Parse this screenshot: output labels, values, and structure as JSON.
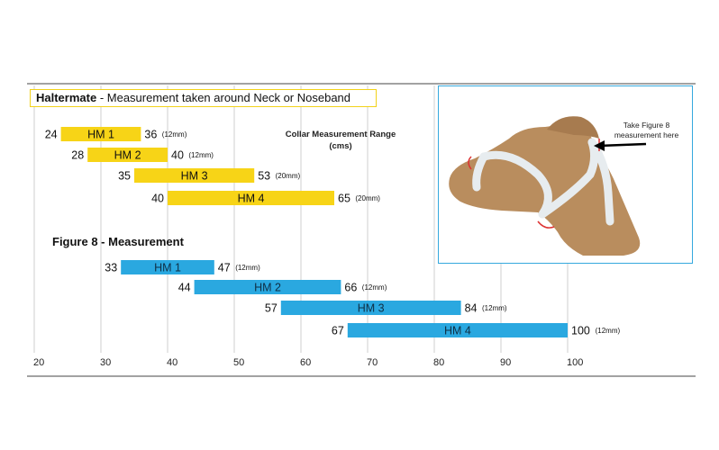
{
  "haltermate_label": "Haltermate",
  "haltermate_desc": " - Measurement taken around Neck or Noseband",
  "range_title_line1": "Collar Measurement Range",
  "range_title_line2": "(cms)",
  "figure8_title": "Figure 8 - Measurement",
  "dog_note_line1": "Take Figure 8",
  "dog_note_line2": "measurement here",
  "colors": {
    "haltermate": "#f7d417",
    "figure8": "#2aa8e0",
    "gridline": "#cfcfcf",
    "panel_border": "#35a9de",
    "dog_fill": "#b98d5e",
    "strap": "#e7ecef"
  },
  "chart_data": {
    "type": "bar",
    "orientation": "horizontal-range",
    "title": "Collar Measurement Range (cms)",
    "xlim": [
      20,
      100
    ],
    "x_ticks": [
      20,
      30,
      40,
      50,
      60,
      70,
      80,
      90,
      100
    ],
    "grid": true,
    "series": [
      {
        "name": "Haltermate - Measurement taken around Neck or Noseband",
        "items": [
          {
            "label": "HM 1",
            "start": 24,
            "end": 36,
            "note": "(12mm)"
          },
          {
            "label": "HM 2",
            "start": 28,
            "end": 40,
            "note": "(12mm)"
          },
          {
            "label": "HM 3",
            "start": 35,
            "end": 53,
            "note": "(20mm)"
          },
          {
            "label": "HM 4",
            "start": 40,
            "end": 65,
            "note": "(20mm)"
          }
        ]
      },
      {
        "name": "Figure 8 - Measurement",
        "items": [
          {
            "label": "HM 1",
            "start": 33,
            "end": 47,
            "note": "(12mm)"
          },
          {
            "label": "HM 2",
            "start": 44,
            "end": 66,
            "note": "(12mm)"
          },
          {
            "label": "HM 3",
            "start": 57,
            "end": 84,
            "note": "(12mm)"
          },
          {
            "label": "HM 4",
            "start": 67,
            "end": 100,
            "note": "(12mm)"
          }
        ]
      }
    ]
  }
}
